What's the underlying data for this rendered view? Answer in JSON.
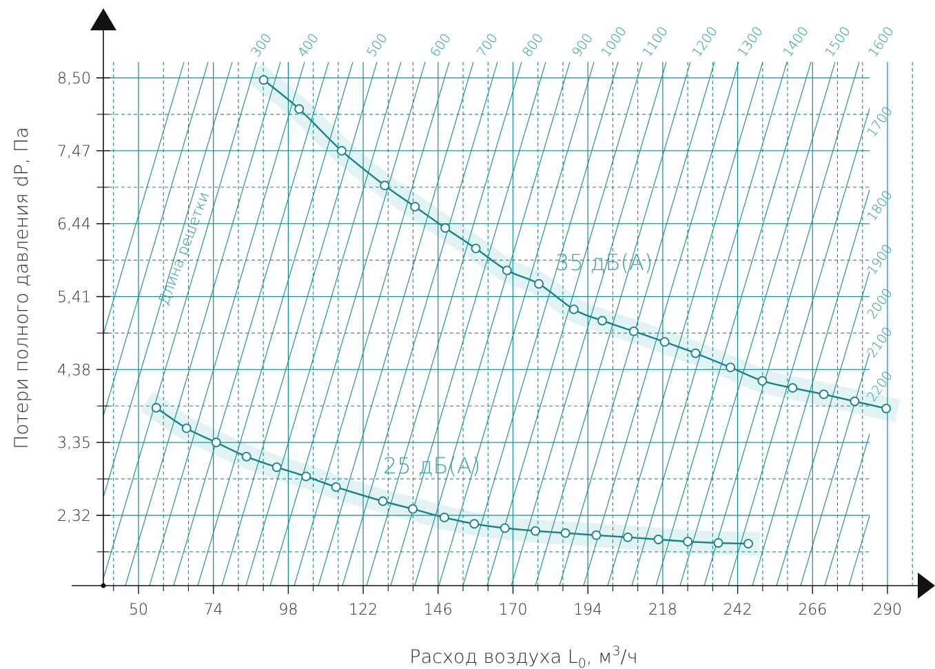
{
  "colors": {
    "grid": "#138c8f",
    "band": "#e3f3f4",
    "curve": "#118489",
    "axis": "#111111",
    "text": "#2b2b2b",
    "label": "#1a9a9c"
  },
  "chart_data": {
    "type": "line",
    "xlabel_main": "Расход воздуха L",
    "xlabel_sub": "0",
    "xlabel_unit_a": ", м",
    "xlabel_sup": "3",
    "xlabel_unit_b": "/ч",
    "ylabel": "Потери полного давления dP, Па",
    "x_ticks": [
      "50",
      "74",
      "98",
      "122",
      "146",
      "170",
      "194",
      "218",
      "242",
      "266",
      "290"
    ],
    "y_ticks": [
      "2,32",
      "3,35",
      "4,38",
      "5,41",
      "6,44",
      "7,47",
      "8,50"
    ],
    "xlim": [
      40,
      315
    ],
    "ylim": [
      1.3,
      9.5
    ],
    "grid": true,
    "diagonal_caption": "Длина решетки",
    "diagonal_labels": [
      "300",
      "400",
      "500",
      "600",
      "700",
      "800",
      "900",
      "1000",
      "1100",
      "1200",
      "1300",
      "1400",
      "1500",
      "1600",
      "1700",
      "1800",
      "1900",
      "2000",
      "2100",
      "2200"
    ],
    "series": [
      {
        "name": "35 дБ(А)",
        "x": [
          90.1,
          101.5,
          115.1,
          128.9,
          138.6,
          148.3,
          158.1,
          168.1,
          178.3,
          189.5,
          198.6,
          208.7,
          218.6,
          228.5,
          239.7,
          249.9,
          259.6,
          269.6,
          279.5,
          289.6
        ],
        "y": [
          8.47,
          8.06,
          7.47,
          6.98,
          6.68,
          6.38,
          6.09,
          5.78,
          5.59,
          5.23,
          5.07,
          4.92,
          4.77,
          4.61,
          4.41,
          4.22,
          4.12,
          4.03,
          3.93,
          3.83
        ]
      },
      {
        "name": "25 дБ(А)",
        "x": [
          55.7,
          65.4,
          74.9,
          84.6,
          94.3,
          103.7,
          113.3,
          128.3,
          137.9,
          148.0,
          157.6,
          167.4,
          177.2,
          186.8,
          196.7,
          206.8,
          216.6,
          226.0,
          235.8,
          245.4
        ],
        "y": [
          3.84,
          3.55,
          3.35,
          3.15,
          3.0,
          2.87,
          2.72,
          2.52,
          2.41,
          2.29,
          2.2,
          2.14,
          2.1,
          2.07,
          2.04,
          2.01,
          1.98,
          1.95,
          1.93,
          1.92
        ]
      }
    ]
  }
}
